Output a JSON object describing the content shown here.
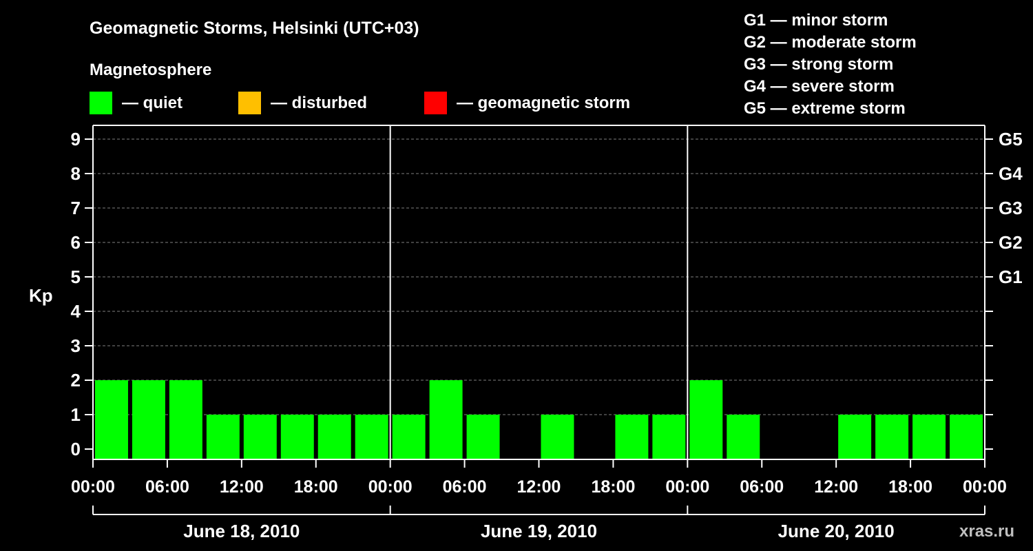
{
  "chart_data": {
    "type": "bar",
    "title": "Geomagnetic Storms, Helsinki (UTC+03)",
    "subtitle": "Magnetosphere",
    "ylabel": "Kp",
    "ylim": [
      0,
      9
    ],
    "yticks": [
      "0",
      "1",
      "2",
      "3",
      "4",
      "5",
      "6",
      "7",
      "8",
      "9"
    ],
    "right_axis_labels": [
      {
        "kp": 5,
        "label": "G1"
      },
      {
        "kp": 6,
        "label": "G2"
      },
      {
        "kp": 7,
        "label": "G3"
      },
      {
        "kp": 8,
        "label": "G4"
      },
      {
        "kp": 9,
        "label": "G5"
      }
    ],
    "legend": [
      {
        "label": "— quiet",
        "color": "#00ff00"
      },
      {
        "label": "— disturbed",
        "color": "#ffbf00"
      },
      {
        "label": "— geomagnetic storm",
        "color": "#ff0000"
      }
    ],
    "storm_scale": [
      "G1 — minor storm",
      "G2 — moderate storm",
      "G3 — strong storm",
      "G4 — severe storm",
      "G5 — extreme storm"
    ],
    "xtick_labels": [
      "00:00",
      "06:00",
      "12:00",
      "18:00",
      "00:00",
      "06:00",
      "12:00",
      "18:00",
      "00:00",
      "06:00",
      "12:00",
      "18:00",
      "00:00"
    ],
    "days": [
      "June 18, 2010",
      "June 19, 2010",
      "June 20, 2010"
    ],
    "values": [
      2,
      2,
      2,
      1,
      1,
      1,
      1,
      1,
      1,
      2,
      1,
      0,
      1,
      0,
      1,
      1,
      2,
      1,
      0,
      0,
      1,
      1,
      1,
      1
    ],
    "bar_color": "#00ff00",
    "grid": true
  },
  "watermark": "xras.ru"
}
